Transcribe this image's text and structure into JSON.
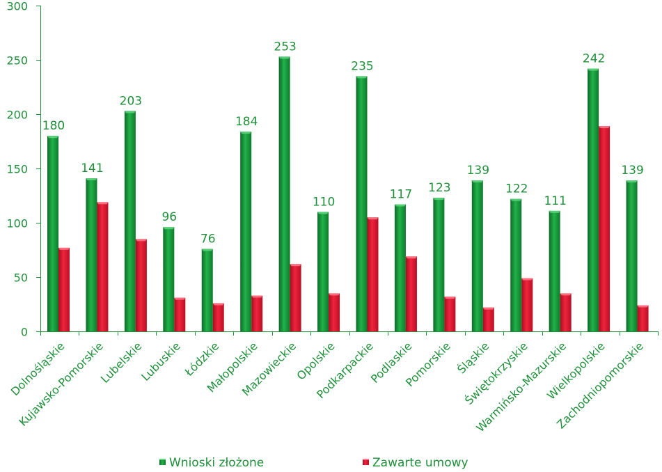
{
  "chart_data": {
    "type": "bar",
    "categories": [
      "Dolnośląskie",
      "Kujawsko-Pomorskie",
      "Lubelskie",
      "Lubuskie",
      "Łódzkie",
      "Małopolskie",
      "Mazowieckie",
      "Opolskie",
      "Podkarpackie",
      "Podlaskie",
      "Pomorskie",
      "Śląskie",
      "Świętokrzyskie",
      "Warmińsko-Mazurskie",
      "Wielkopolskie",
      "Zachodniopomorskie"
    ],
    "series": [
      {
        "name": "Wnioski złożone",
        "values": [
          180,
          141,
          203,
          96,
          76,
          184,
          253,
          110,
          235,
          117,
          123,
          139,
          122,
          111,
          242,
          139
        ],
        "color": "#1a9a3c",
        "labels_shown": true
      },
      {
        "name": "Zawarte umowy",
        "values": [
          77,
          119,
          85,
          31,
          26,
          33,
          62,
          35,
          105,
          69,
          32,
          22,
          49,
          35,
          189,
          24
        ],
        "color": "#e8162f",
        "labels_shown": false
      }
    ],
    "ylim": [
      0,
      300
    ],
    "yticks": [
      0,
      50,
      100,
      150,
      200,
      250,
      300
    ],
    "xlabel": "",
    "ylabel": "",
    "title": "",
    "grid": false,
    "legend_position": "bottom",
    "text_color": "#1f8f3a"
  }
}
